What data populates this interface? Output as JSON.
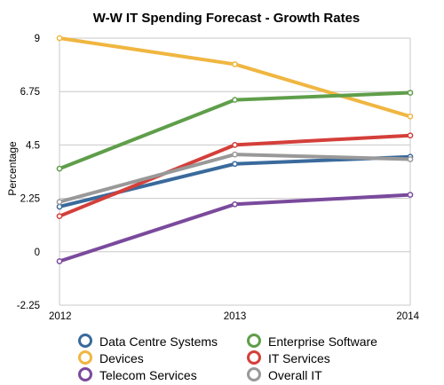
{
  "chart_data": {
    "type": "line",
    "title": "W-W IT Spending Forecast - Growth Rates",
    "xlabel": "",
    "ylabel": "Percentage",
    "categories": [
      "2012",
      "2013",
      "2014"
    ],
    "yticks": [
      "9",
      "6.75",
      "4.5",
      "2.25",
      "0",
      "-2.25"
    ],
    "ylim": [
      -2.25,
      9
    ],
    "grid": true,
    "legend_position": "bottom",
    "series": [
      {
        "name": "Data Centre Systems",
        "color": "#3a6a9c",
        "values": [
          1.9,
          3.7,
          4.0
        ]
      },
      {
        "name": "Devices",
        "color": "#f0b640",
        "values": [
          9.0,
          7.9,
          5.7
        ]
      },
      {
        "name": "Telecom Services",
        "color": "#7a4a9c",
        "values": [
          -0.4,
          2.0,
          2.4
        ]
      },
      {
        "name": "Enterprise Software",
        "color": "#5f9e4a",
        "values": [
          3.5,
          6.4,
          6.7
        ]
      },
      {
        "name": "IT Services",
        "color": "#d43f3a",
        "values": [
          1.5,
          4.5,
          4.9
        ]
      },
      {
        "name": "Overall IT",
        "color": "#999999",
        "values": [
          2.1,
          4.1,
          3.9
        ]
      }
    ]
  }
}
